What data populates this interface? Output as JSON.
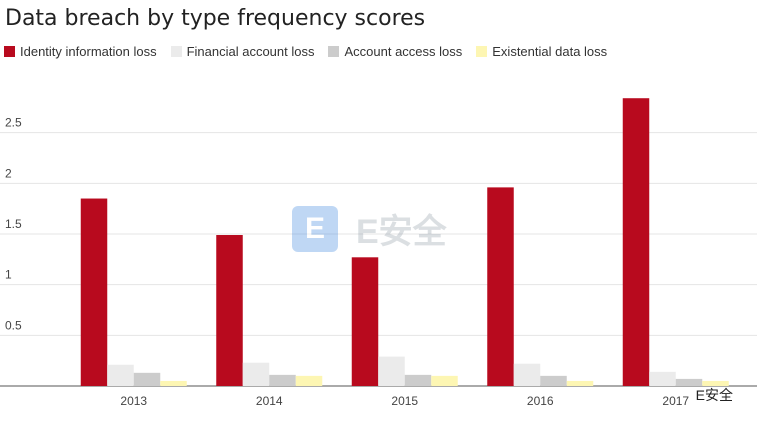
{
  "chart_data": {
    "type": "bar",
    "title": "Data breach by type frequency scores",
    "xlabel": "",
    "ylabel": "",
    "categories": [
      "2013",
      "2014",
      "2015",
      "2016",
      "2017"
    ],
    "ylim": [
      0,
      3.0
    ],
    "yticks": [
      0.5,
      1,
      1.5,
      2,
      2.5
    ],
    "ytick_labels": [
      "0.5",
      "1",
      "1.5",
      "2",
      "2.5"
    ],
    "grid": true,
    "legend_position": "top-left",
    "series": [
      {
        "name": "Identity information loss",
        "color": "#b80a1e",
        "values": [
          1.85,
          1.49,
          1.27,
          1.96,
          2.84
        ]
      },
      {
        "name": "Financial account loss",
        "color": "#ebebeb",
        "values": [
          0.21,
          0.23,
          0.29,
          0.22,
          0.14
        ]
      },
      {
        "name": "Account access loss",
        "color": "#cccccc",
        "values": [
          0.13,
          0.11,
          0.11,
          0.1,
          0.07
        ]
      },
      {
        "name": "Existential data loss",
        "color": "#fdf6b3",
        "values": [
          0.05,
          0.1,
          0.1,
          0.05,
          0.05
        ]
      }
    ]
  },
  "watermark": {
    "logo_letter": "E",
    "text": "E安全"
  },
  "badge": {
    "text": "E安全"
  }
}
